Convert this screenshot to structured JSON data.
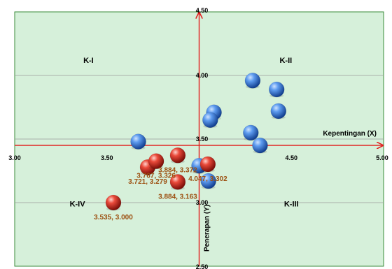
{
  "chart_data": {
    "type": "scatter",
    "title": "",
    "x_range": [
      3.0,
      5.0
    ],
    "y_range": [
      2.5,
      4.5
    ],
    "x_axis_position_y": 3.45,
    "y_axis_position_x": 4.0,
    "grid": "horizontal major gridlines",
    "x_ticks": [
      {
        "value": 3.0,
        "label": "3.00"
      },
      {
        "value": 3.5,
        "label": "3.50"
      },
      {
        "value": 4.5,
        "label": "4.50"
      },
      {
        "value": 5.0,
        "label": "5.00"
      }
    ],
    "y_ticks": [
      {
        "value": 4.5,
        "label": "4.50"
      },
      {
        "value": 4.0,
        "label": "4.00"
      },
      {
        "value": 3.5,
        "label": "3.50"
      },
      {
        "value": 3.0,
        "label": "3.00"
      },
      {
        "value": 2.5,
        "label": "2.50"
      }
    ],
    "x_label": "Kepentingan (X)",
    "y_label": "Penerapan (Y)",
    "quadrants": [
      {
        "label": "K-I",
        "x": 3.4,
        "y": 4.1
      },
      {
        "label": "K-II",
        "x": 4.47,
        "y": 4.1
      },
      {
        "label": "K-III",
        "x": 4.5,
        "y": 2.97
      },
      {
        "label": "K-IV",
        "x": 3.34,
        "y": 2.97
      }
    ],
    "series": [
      {
        "color": "#2f6bd4",
        "points": [
          {
            "x": 4.29,
            "y": 3.96
          },
          {
            "x": 4.42,
            "y": 3.89
          },
          {
            "x": 4.43,
            "y": 3.72
          },
          {
            "x": 4.08,
            "y": 3.71
          },
          {
            "x": 4.06,
            "y": 3.65
          },
          {
            "x": 4.28,
            "y": 3.55
          },
          {
            "x": 4.33,
            "y": 3.45
          },
          {
            "x": 3.67,
            "y": 3.48
          },
          {
            "x": 4.0,
            "y": 3.29
          },
          {
            "x": 4.05,
            "y": 3.17
          }
        ]
      },
      {
        "color": "#d42a1e",
        "points": [
          {
            "x": 3.535,
            "y": 3.0,
            "label": "3.535, 3.000"
          },
          {
            "x": 3.721,
            "y": 3.279,
            "label": "3.721, 3.279"
          },
          {
            "x": 3.767,
            "y": 3.326,
            "label": "3.767, 3.326"
          },
          {
            "x": 3.884,
            "y": 3.372,
            "label": "3.884, 3.372"
          },
          {
            "x": 4.047,
            "y": 3.302,
            "label": "4.047, 3.302"
          },
          {
            "x": 3.884,
            "y": 3.163,
            "label": "3.884, 3.163"
          }
        ]
      }
    ]
  }
}
